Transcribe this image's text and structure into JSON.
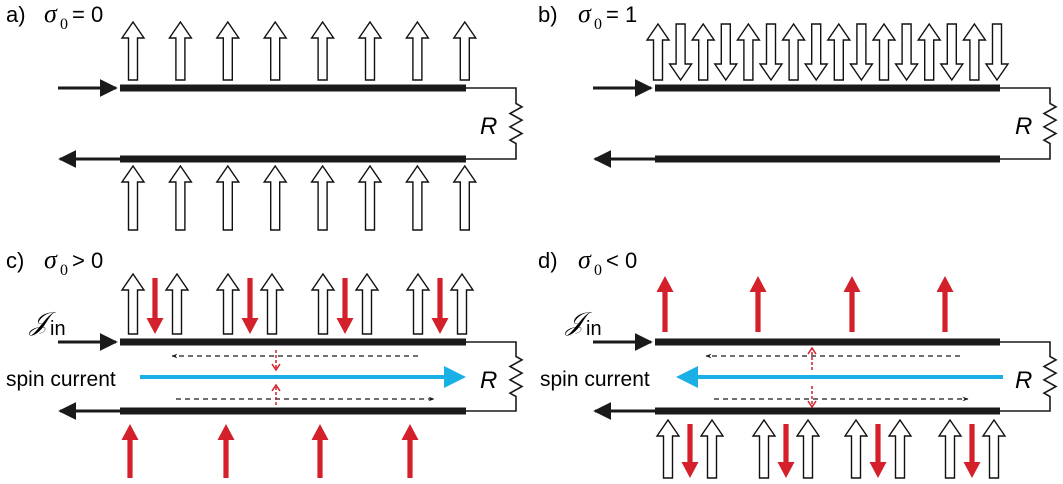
{
  "colors": {
    "red": "#d4202a",
    "blue": "#1ab0e6",
    "wire": "#1a1a1a"
  },
  "panels": [
    {
      "letter": "a)",
      "symbol": "σ",
      "sub": "0",
      "relation": "= 0",
      "resistor": "R"
    },
    {
      "letter": "b)",
      "symbol": "σ",
      "sub": "0",
      "relation": "= 1",
      "resistor": "R"
    },
    {
      "letter": "c)",
      "symbol": "σ",
      "sub": "0",
      "relation": "> 0",
      "resistor": "R",
      "current_symbol": "𝒥",
      "current_sub": "in",
      "spin_label": "spin current"
    },
    {
      "letter": "d)",
      "symbol": "σ",
      "sub": "0",
      "relation": "< 0",
      "resistor": "R",
      "current_symbol": "𝒥",
      "current_sub": "in",
      "spin_label": "spin current"
    }
  ]
}
